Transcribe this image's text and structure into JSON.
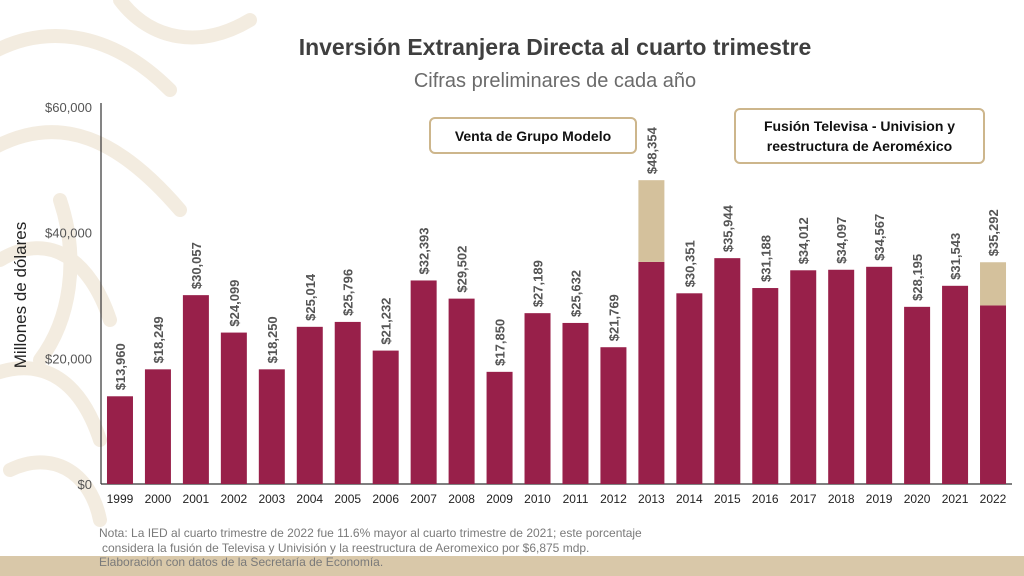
{
  "colors": {
    "bar": "#98204a",
    "extra": "#d4c19c",
    "callout_border": "#cdb68c",
    "band": "#d9c8a9"
  },
  "chart_data": {
    "type": "bar",
    "title": "Inversión Extranjera Directa al cuarto trimestre",
    "subtitle": "Cifras preliminares de cada año",
    "xlabel": "",
    "ylabel": "Millones de dólares",
    "ylim": [
      0,
      60000
    ],
    "y_ticks": [
      "$0",
      "$20,000",
      "$40,000",
      "$60,000"
    ],
    "y_tick_values": [
      0,
      20000,
      40000,
      60000
    ],
    "stacked": true,
    "grid": false,
    "categories": [
      "1999",
      "2000",
      "2001",
      "2002",
      "2003",
      "2004",
      "2005",
      "2006",
      "2007",
      "2008",
      "2009",
      "2010",
      "2011",
      "2012",
      "2013",
      "2014",
      "2015",
      "2016",
      "2017",
      "2018",
      "2019",
      "2020",
      "2021",
      "2022"
    ],
    "series": [
      {
        "values": [
          13960,
          18249,
          30057,
          24099,
          18250,
          25014,
          25796,
          21232,
          32393,
          29502,
          17850,
          27189,
          25632,
          21769,
          35354,
          30351,
          35944,
          31188,
          34012,
          34097,
          34567,
          28195,
          31543,
          28417
        ]
      },
      {
        "values": [
          0,
          0,
          0,
          0,
          0,
          0,
          0,
          0,
          0,
          0,
          0,
          0,
          0,
          0,
          13000,
          0,
          0,
          0,
          0,
          0,
          0,
          0,
          0,
          6875
        ]
      }
    ],
    "data_labels": [
      "$13,960",
      "$18,249",
      "$30,057",
      "$24,099",
      "$18,250",
      "$25,014",
      "$25,796",
      "$21,232",
      "$32,393",
      "$29,502",
      "$17,850",
      "$27,189",
      "$25,632",
      "$21,769",
      "$48,354",
      "$30,351",
      "$35,944",
      "$31,188",
      "$34,012",
      "$34,097",
      "$34,567",
      "$28,195",
      "$31,543",
      "$35,292"
    ],
    "annotations": [
      "Venta de Grupo Modelo",
      "Fusión Televisa - Univision y reestructura de Aeroméxico"
    ]
  },
  "notes": [
    "Nota: La IED al cuarto trimestre de 2022 fue 11.6% mayor al cuarto trimestre de 2021; este porcentaje",
    "considera la fusión de Televisa y Univisión y la reestructura de Aeromexico por $6,875 mdp.",
    "Elaboración con datos de la Secretaría de Economía."
  ]
}
